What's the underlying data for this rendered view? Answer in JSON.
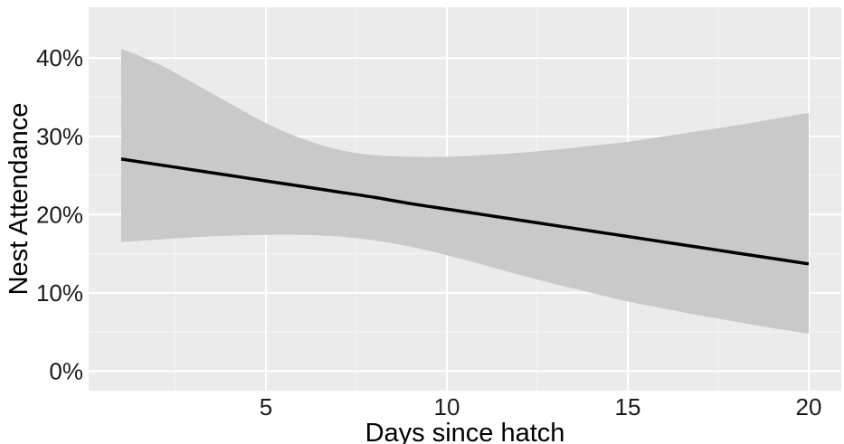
{
  "chart_data": {
    "type": "line",
    "title": "",
    "xlabel": "Days since hatch",
    "ylabel": "Nest Attendance",
    "xlim": [
      0.1,
      20.9
    ],
    "ylim": [
      -0.025,
      0.465
    ],
    "x_ticks": [
      5,
      10,
      15,
      20
    ],
    "x_tick_labels": [
      "5",
      "10",
      "15",
      "20"
    ],
    "y_ticks": [
      0,
      0.1,
      0.2,
      0.3,
      0.4
    ],
    "y_tick_labels": [
      "0%",
      "10%",
      "20%",
      "30%",
      "40%"
    ],
    "grid": true,
    "legend": "none",
    "series": [
      {
        "x": [
          1,
          2,
          3,
          4,
          5,
          6,
          7,
          8,
          9,
          10,
          11,
          12,
          13,
          14,
          15,
          16,
          17,
          18,
          19,
          20
        ],
        "y": [
          0.271,
          0.264,
          0.257,
          0.25,
          0.243,
          0.236,
          0.229,
          0.222,
          0.214,
          0.207,
          0.2,
          0.193,
          0.186,
          0.179,
          0.172,
          0.165,
          0.158,
          0.151,
          0.144,
          0.137
        ],
        "lower": [
          0.165,
          0.168,
          0.171,
          0.173,
          0.174,
          0.174,
          0.172,
          0.167,
          0.159,
          0.148,
          0.136,
          0.123,
          0.111,
          0.1,
          0.089,
          0.08,
          0.071,
          0.063,
          0.055,
          0.048
        ],
        "upper": [
          0.412,
          0.393,
          0.368,
          0.342,
          0.317,
          0.297,
          0.283,
          0.276,
          0.274,
          0.274,
          0.276,
          0.279,
          0.283,
          0.288,
          0.293,
          0.3,
          0.307,
          0.314,
          0.322,
          0.33
        ]
      }
    ],
    "colors": {
      "panel": "#ebebeb",
      "grid_major": "#ffffff",
      "grid_minor": "#f5f5f5",
      "ribbon": "#c9c9c9",
      "line": "#000000",
      "text": "#1a1a1a"
    }
  }
}
